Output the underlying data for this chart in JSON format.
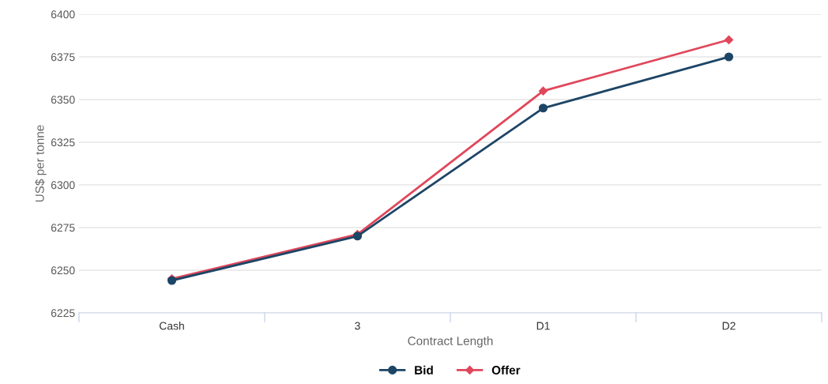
{
  "chart_data": {
    "type": "line",
    "xlabel": "Contract Length",
    "ylabel": "US$ per tonne",
    "categories": [
      "Cash",
      "3",
      "D1",
      "D2"
    ],
    "series": [
      {
        "name": "Bid",
        "color": "#1d4566",
        "marker": "circle",
        "values": [
          6244,
          6270,
          6345,
          6375
        ]
      },
      {
        "name": "Offer",
        "color": "#e0475b",
        "marker": "diamond",
        "values": [
          6245,
          6271,
          6355,
          6385
        ]
      }
    ],
    "ylim": [
      6225,
      6400
    ],
    "yticks": [
      6225,
      6250,
      6275,
      6300,
      6325,
      6350,
      6375,
      6400
    ],
    "grid": "y",
    "legend": "bottom"
  }
}
